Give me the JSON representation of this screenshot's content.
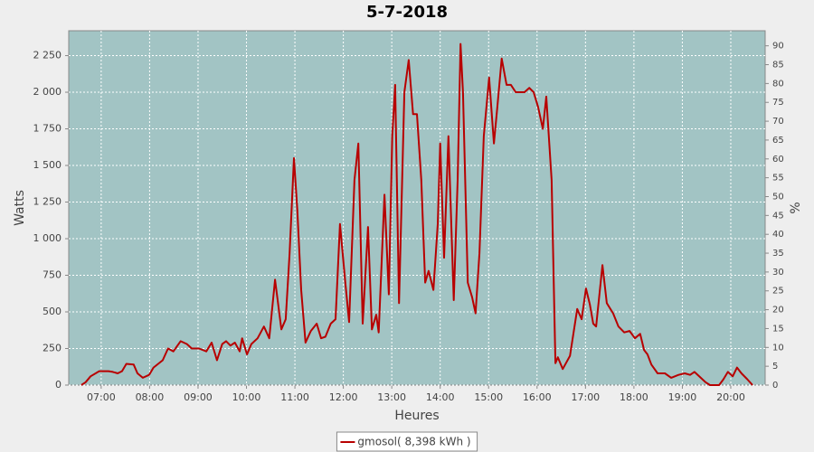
{
  "chart_data": {
    "type": "line",
    "title": "5-7-2018",
    "y_label": "Watts",
    "y2_label": "%",
    "x_label": "Heures",
    "xlim": [
      6.33,
      20.71
    ],
    "ylim": [
      0,
      2420
    ],
    "y2lim": [
      0,
      94
    ],
    "xticks": [
      {
        "value": 7,
        "label": "07:00"
      },
      {
        "value": 8,
        "label": "08:00"
      },
      {
        "value": 9,
        "label": "09:00"
      },
      {
        "value": 10,
        "label": "10:00"
      },
      {
        "value": 11,
        "label": "11:00"
      },
      {
        "value": 12,
        "label": "12:00"
      },
      {
        "value": 13,
        "label": "13:00"
      },
      {
        "value": 14,
        "label": "14:00"
      },
      {
        "value": 15,
        "label": "15:00"
      },
      {
        "value": 16,
        "label": "16:00"
      },
      {
        "value": 17,
        "label": "17:00"
      },
      {
        "value": 18,
        "label": "18:00"
      },
      {
        "value": 19,
        "label": "19:00"
      },
      {
        "value": 20,
        "label": "20:00"
      }
    ],
    "yticks": [
      0,
      250,
      500,
      750,
      {
        "value": 1000,
        "label": "1 000"
      },
      {
        "value": 1250,
        "label": "1 250"
      },
      {
        "value": 1500,
        "label": "1 500"
      },
      {
        "value": 1750,
        "label": "1 750"
      },
      {
        "value": 2000,
        "label": "2 000"
      },
      {
        "value": 2250,
        "label": "2 250"
      }
    ],
    "y2ticks": [
      0,
      5,
      10,
      15,
      20,
      25,
      30,
      35,
      40,
      45,
      50,
      55,
      60,
      65,
      70,
      75,
      80,
      85,
      90
    ],
    "grid": true,
    "plot_background": "#a2c4c4",
    "x": [
      6.59,
      6.68,
      6.78,
      6.96,
      7.15,
      7.24,
      7.34,
      7.43,
      7.52,
      7.67,
      7.75,
      7.86,
      7.99,
      8.08,
      8.27,
      8.38,
      8.49,
      8.64,
      8.77,
      8.87,
      9.02,
      9.17,
      9.28,
      9.39,
      9.5,
      9.58,
      9.67,
      9.76,
      9.86,
      9.91,
      10.01,
      10.1,
      10.23,
      10.36,
      10.47,
      10.59,
      10.72,
      10.81,
      10.89,
      10.98,
      11.05,
      11.13,
      11.22,
      11.33,
      11.45,
      11.54,
      11.63,
      11.74,
      11.84,
      11.93,
      12.04,
      12.12,
      12.23,
      12.31,
      12.4,
      12.51,
      12.59,
      12.68,
      12.73,
      12.85,
      12.94,
      13.01,
      13.07,
      13.15,
      13.26,
      13.35,
      13.44,
      13.52,
      13.61,
      13.69,
      13.76,
      13.86,
      13.95,
      14.0,
      14.08,
      14.17,
      14.28,
      14.36,
      14.42,
      14.47,
      14.57,
      14.66,
      14.73,
      14.81,
      14.9,
      15.01,
      15.11,
      15.18,
      15.27,
      15.37,
      15.46,
      15.56,
      15.74,
      15.84,
      15.93,
      16.02,
      16.12,
      16.19,
      16.3,
      16.38,
      16.43,
      16.53,
      16.68,
      16.83,
      16.92,
      17.01,
      17.09,
      17.16,
      17.22,
      17.35,
      17.44,
      17.57,
      17.68,
      17.8,
      17.91,
      18.02,
      18.13,
      18.21,
      18.28,
      18.36,
      18.49,
      18.64,
      18.77,
      18.92,
      19.05,
      19.16,
      19.25,
      19.38,
      19.48,
      19.57,
      19.76,
      19.85,
      19.94,
      20.04,
      20.13,
      20.22,
      20.34,
      20.45
    ],
    "series": [
      {
        "name": "gmosol( 8,398 kWh )",
        "color": "#b80000",
        "values": [
          0,
          20,
          60,
          95,
          95,
          90,
          80,
          95,
          145,
          140,
          80,
          50,
          70,
          120,
          170,
          250,
          230,
          300,
          280,
          250,
          250,
          230,
          290,
          170,
          280,
          300,
          270,
          290,
          230,
          320,
          210,
          280,
          320,
          400,
          320,
          720,
          380,
          450,
          900,
          1550,
          1200,
          650,
          290,
          370,
          420,
          320,
          330,
          420,
          450,
          1100,
          700,
          430,
          1400,
          1650,
          420,
          1080,
          380,
          480,
          360,
          1300,
          620,
          1700,
          2050,
          560,
          2000,
          2220,
          1850,
          1850,
          1400,
          700,
          780,
          650,
          1100,
          1650,
          870,
          1700,
          580,
          1400,
          2330,
          2000,
          700,
          600,
          490,
          900,
          1700,
          2100,
          1650,
          1900,
          2230,
          2050,
          2050,
          2000,
          2000,
          2030,
          2000,
          1900,
          1750,
          1970,
          1400,
          150,
          190,
          110,
          200,
          520,
          450,
          660,
          550,
          420,
          400,
          820,
          560,
          490,
          400,
          360,
          370,
          320,
          350,
          240,
          210,
          140,
          80,
          80,
          50,
          70,
          80,
          70,
          90,
          50,
          20,
          0,
          0,
          40,
          90,
          60,
          120,
          80,
          40,
          0
        ]
      }
    ]
  }
}
